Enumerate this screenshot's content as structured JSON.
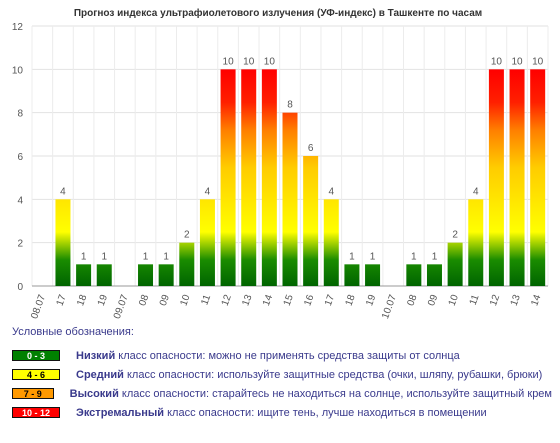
{
  "chart_data": {
    "type": "bar",
    "title": "Прогноз индекса ультрафиолетового излучения (УФ-индекс) в Ташкенте по часам",
    "xlabel": "",
    "ylabel": "",
    "ylim": [
      0,
      12
    ],
    "yticks": [
      "0",
      "2",
      "4",
      "6",
      "8",
      "10",
      "12"
    ],
    "grid": true,
    "categories": [
      "08.07",
      "17",
      "18",
      "19",
      "09.07",
      "08",
      "09",
      "10",
      "11",
      "12",
      "13",
      "14",
      "15",
      "16",
      "17",
      "18",
      "19",
      "10.07",
      "08",
      "09",
      "10",
      "11",
      "12",
      "13",
      "14"
    ],
    "values": [
      null,
      4,
      1,
      1,
      null,
      1,
      1,
      2,
      4,
      10,
      10,
      10,
      8,
      6,
      4,
      1,
      1,
      null,
      1,
      1,
      2,
      4,
      10,
      10,
      10
    ],
    "value_labels": [
      "",
      "4",
      "1",
      "1",
      "",
      "1",
      "1",
      "2",
      "4",
      "10",
      "10",
      "10",
      "8",
      "6",
      "4",
      "1",
      "1",
      "",
      "1",
      "1",
      "2",
      "4",
      "10",
      "10",
      "10"
    ]
  },
  "legend": {
    "title": "Условные обозначения:",
    "items": [
      {
        "range": "0 - 3",
        "bold": "Низкий",
        "text": " класс опасности: можно не применять средства защиты от солнца",
        "color": "#008000",
        "text_color": "#ffffff"
      },
      {
        "range": "4 - 6",
        "bold": "Средний",
        "text": " класс опасности: используйте защитные средства (очки, шляпу, рубашки, брюки)",
        "color": "#ffff00",
        "text_color": "#000000"
      },
      {
        "range": "7 - 9",
        "bold": "Высокий",
        "text": " класс опасности: старайтесь не находиться на солнце, используйте защитный крем",
        "color": "#ff9900",
        "text_color": "#000000"
      },
      {
        "range": "10 - 12",
        "bold": "Экстремальный",
        "text": " класс опасности: ищите тень, лучше находиться в помещении",
        "color": "#ff0000",
        "text_color": "#ffffff"
      }
    ]
  }
}
